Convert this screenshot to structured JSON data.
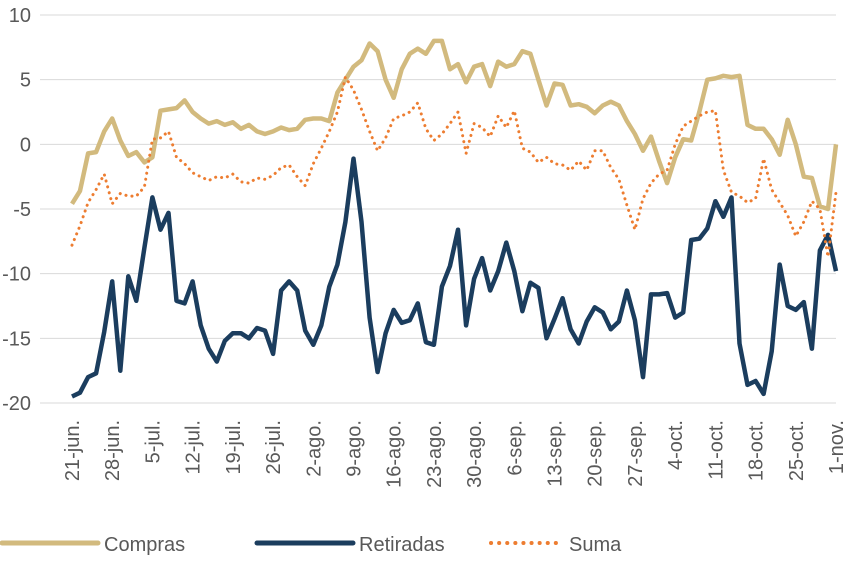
{
  "chart_data": {
    "type": "line",
    "categories": [
      "21-jun.",
      null,
      null,
      null,
      null,
      "28-jun.",
      null,
      null,
      null,
      null,
      "5-jul.",
      null,
      null,
      null,
      null,
      "12-jul.",
      null,
      null,
      null,
      null,
      "19-jul.",
      null,
      null,
      null,
      null,
      "26-jul.",
      null,
      null,
      null,
      null,
      "2-ago.",
      null,
      null,
      null,
      null,
      "9-ago.",
      null,
      null,
      null,
      null,
      "16-ago.",
      null,
      null,
      null,
      null,
      "23-ago.",
      null,
      null,
      null,
      null,
      "30-ago.",
      null,
      null,
      null,
      null,
      "6-sep.",
      null,
      null,
      null,
      null,
      "13-sep.",
      null,
      null,
      null,
      null,
      "20-sep.",
      null,
      null,
      null,
      null,
      "27-sep.",
      null,
      null,
      null,
      null,
      "4-oct.",
      null,
      null,
      null,
      null,
      "11-oct.",
      null,
      null,
      null,
      null,
      "18-oct.",
      null,
      null,
      null,
      null,
      "25-oct.",
      null,
      null,
      null,
      null,
      "1-nov."
    ],
    "series": [
      {
        "name": "Compras",
        "color": "#d2ba7e",
        "dash": false,
        "values": [
          -4.6,
          -3.6,
          -0.7,
          -0.6,
          1.0,
          2.0,
          0.3,
          -0.9,
          -0.6,
          -1.4,
          -1.0,
          2.6,
          2.7,
          2.8,
          3.4,
          2.5,
          2.0,
          1.6,
          1.8,
          1.5,
          1.7,
          1.2,
          1.5,
          1.0,
          0.8,
          1.0,
          1.3,
          1.1,
          1.2,
          1.9,
          2.0,
          2.0,
          1.8,
          4.0,
          5.0,
          6.0,
          6.5,
          7.8,
          7.2,
          5.0,
          3.6,
          5.8,
          7.0,
          7.4,
          7.0,
          8.0,
          8.0,
          5.8,
          6.2,
          4.8,
          6.0,
          6.2,
          4.5,
          6.4,
          6.0,
          6.2,
          7.2,
          7.0,
          5.0,
          3.0,
          4.7,
          4.6,
          3.0,
          3.1,
          2.9,
          2.4,
          3.0,
          3.3,
          3.0,
          1.8,
          0.8,
          -0.5,
          0.6,
          -1.3,
          -3.0,
          -1.0,
          0.4,
          0.3,
          2.5,
          5.0,
          5.1,
          5.3,
          5.2,
          5.3,
          1.5,
          1.2,
          1.2,
          0.4,
          -0.8,
          1.9,
          0.0,
          -2.5,
          -2.6,
          -4.8,
          -5.0,
          0.0
        ]
      },
      {
        "name": "Retiradas",
        "color": "#1b3d5e",
        "dash": false,
        "values": [
          -19.5,
          -19.2,
          -18,
          -17.7,
          -14.5,
          -10.6,
          -17.5,
          -10.2,
          -12.1,
          -8.0,
          -4.1,
          -6.6,
          -5.3,
          -12.1,
          -12.3,
          -10.6,
          -14,
          -15.8,
          -16.8,
          -15.2,
          -14.6,
          -14.6,
          -15,
          -14.2,
          -14.4,
          -16.2,
          -11.3,
          -10.6,
          -11.3,
          -14.4,
          -15.5,
          -14,
          -11,
          -9.3,
          -6,
          -1.1,
          -6,
          -13.4,
          -17.6,
          -14.6,
          -12.8,
          -13.8,
          -13.6,
          -12.3,
          -15.3,
          -15.5,
          -11,
          -9.4,
          -6.6,
          -14,
          -10.4,
          -8.8,
          -11.3,
          -9.8,
          -7.6,
          -9.8,
          -12.9,
          -10.7,
          -11.1,
          -15,
          -13.5,
          -11.9,
          -14.3,
          -15.4,
          -13.7,
          -12.6,
          -13,
          -14.3,
          -13.7,
          -11.3,
          -13.6,
          -18,
          -11.6,
          -11.6,
          -11.5,
          -13.4,
          -13,
          -7.4,
          -7.3,
          -6.5,
          -4.4,
          -5.6,
          -4.1,
          -15.4,
          -18.6,
          -18.3,
          -19.3,
          -16,
          -9.3,
          -12.5,
          -12.8,
          -12.2,
          -15.8,
          -8.2,
          -7.0,
          -9.8
        ]
      },
      {
        "name": "Suma",
        "color": "#ed7d31",
        "dash": true,
        "values": [
          -7.8,
          -6.3,
          -4.5,
          -3.5,
          -2.3,
          -4.6,
          -3.8,
          -4,
          -4,
          -3.3,
          0.4,
          0.5,
          1,
          -1,
          -1.5,
          -2.2,
          -2.5,
          -2.8,
          -2.5,
          -2.6,
          -2.3,
          -2.9,
          -3,
          -2.6,
          -2.7,
          -2.4,
          -1.8,
          -1.6,
          -2.5,
          -3.2,
          -1.5,
          -0.3,
          1,
          2.5,
          5.2,
          4.2,
          2.7,
          1,
          -0.5,
          0.5,
          2.0,
          2.2,
          2.5,
          3.2,
          1.2,
          0.3,
          0.8,
          1.6,
          2.5,
          -0.7,
          1.6,
          1.3,
          0.6,
          2.2,
          1.3,
          2.6,
          -0.3,
          -0.6,
          -1.4,
          -1,
          -1.5,
          -1.6,
          -2,
          -1.3,
          -2,
          -0.5,
          -0.5,
          -1.8,
          -2.7,
          -4.7,
          -6.6,
          -4.2,
          -3,
          -2.3,
          -2,
          0,
          1.4,
          1.8,
          2.2,
          2.5,
          2.6,
          -2,
          -3.7,
          -4,
          -4.5,
          -4.2,
          -1.1,
          -3.5,
          -4.5,
          -5.5,
          -7.1,
          -6,
          -4.4,
          -5,
          -8.7,
          -3.7
        ]
      }
    ],
    "ylim": [
      -20,
      10
    ],
    "yticks": [
      -20,
      -15,
      -10,
      -5,
      0,
      5,
      10
    ],
    "grid": true,
    "legend": "bottom"
  }
}
